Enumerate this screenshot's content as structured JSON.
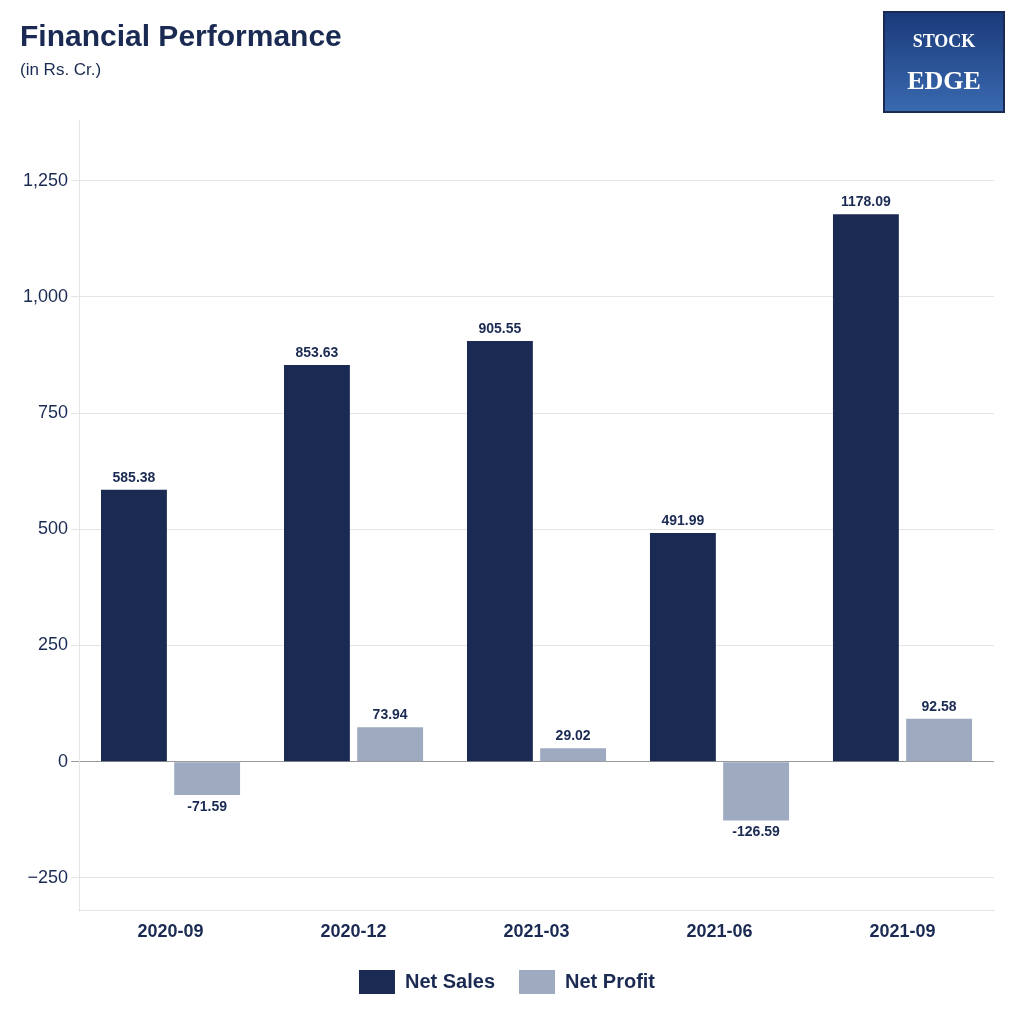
{
  "chart_data": {
    "type": "bar",
    "title": "Financial Performance",
    "subtitle": "(in Rs. Cr.)",
    "annotations": [
      "STOCK",
      "EDGE"
    ],
    "categories": [
      "2020-09",
      "2020-12",
      "2021-03",
      "2021-06",
      "2021-09"
    ],
    "series": [
      {
        "name": "Net Sales",
        "color": "#1a2a52",
        "values": [
          585.38,
          853.63,
          905.55,
          491.99,
          1178.09
        ]
      },
      {
        "name": "Net Profit",
        "color": "#9daabf",
        "values": [
          -71.59,
          73.94,
          29.02,
          -126.59,
          92.58
        ]
      }
    ],
    "ylim": [
      -320,
      1380
    ],
    "yticks": [
      {
        "value": -250,
        "label": "−250"
      },
      0,
      250,
      500,
      750,
      {
        "value": 1000,
        "label": "1,000"
      },
      {
        "value": 1250,
        "label": "1,250"
      }
    ],
    "grid": true,
    "legend": "bottom",
    "data_labels": true
  }
}
